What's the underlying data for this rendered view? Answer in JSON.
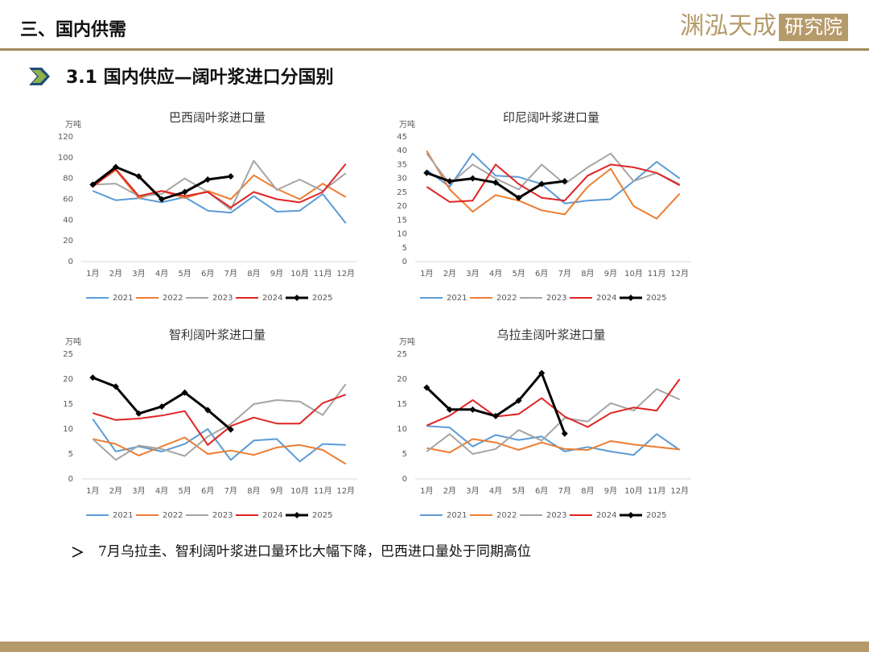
{
  "header": {
    "title": "三、国内供需",
    "logo_main": "渊泓天成",
    "logo_box": "研究院"
  },
  "section": {
    "title": "3.1 国内供应—阔叶浆进口分国别"
  },
  "bullet": {
    "text": "7月乌拉圭、智利阔叶浆进口量环比大幅下降，巴西进口量处于同期高位"
  },
  "chart_data": [
    {
      "type": "line",
      "title": "巴西阔叶浆进口量",
      "y_label": "万吨",
      "categories": [
        "1月",
        "2月",
        "3月",
        "4月",
        "5月",
        "6月",
        "7月",
        "8月",
        "9月",
        "10月",
        "11月",
        "12月"
      ],
      "ylim": [
        0,
        120
      ],
      "yticks": [
        0,
        20,
        40,
        60,
        80,
        100,
        120
      ],
      "series": [
        {
          "name": "2021",
          "color": "#5b9bd5",
          "values": [
            68,
            59,
            61,
            57,
            62,
            49,
            47,
            63,
            48,
            49,
            65,
            37
          ]
        },
        {
          "name": "2022",
          "color": "#ed7d31",
          "values": [
            73,
            88,
            61,
            68,
            61,
            68,
            60,
            83,
            70,
            60,
            75,
            62
          ]
        },
        {
          "name": "2023",
          "color": "#a5a5a5",
          "values": [
            74,
            75,
            63,
            65,
            80,
            67,
            50,
            97,
            69,
            79,
            68,
            85
          ]
        },
        {
          "name": "2024",
          "color": "#e02424",
          "values": [
            72,
            89,
            63,
            68,
            63,
            67,
            52,
            67,
            60,
            57,
            67,
            94
          ]
        },
        {
          "name": "2025",
          "color": "#000000",
          "values": [
            74,
            91,
            82,
            60,
            67,
            79,
            82,
            null,
            null,
            null,
            null,
            null
          ]
        }
      ]
    },
    {
      "type": "line",
      "title": "印尼阔叶浆进口量",
      "y_label": "万吨",
      "categories": [
        "1月",
        "2月",
        "3月",
        "4月",
        "5月",
        "6月",
        "7月",
        "8月",
        "9月",
        "10月",
        "11月",
        "12月"
      ],
      "ylim": [
        0,
        45
      ],
      "yticks": [
        0,
        5,
        10,
        15,
        20,
        25,
        30,
        35,
        40,
        45
      ],
      "series": [
        {
          "name": "2021",
          "color": "#5b9bd5",
          "values": [
            33,
            27,
            39,
            31,
            30.5,
            28,
            21,
            22,
            22.5,
            29,
            36,
            30
          ]
        },
        {
          "name": "2022",
          "color": "#ed7d31",
          "values": [
            40,
            26,
            18,
            24,
            22,
            18.5,
            17,
            27,
            33.5,
            20,
            15.5,
            24.5
          ]
        },
        {
          "name": "2023",
          "color": "#a5a5a5",
          "values": [
            39,
            28,
            35,
            30,
            26,
            35,
            28,
            34,
            39,
            29,
            32,
            28
          ]
        },
        {
          "name": "2024",
          "color": "#e02424",
          "values": [
            27,
            21.5,
            22,
            35,
            28,
            23,
            22,
            31,
            35,
            34,
            32,
            27.5
          ]
        },
        {
          "name": "2025",
          "color": "#000000",
          "values": [
            32,
            29,
            30,
            28.5,
            23,
            28,
            29,
            null,
            null,
            null,
            null,
            null
          ]
        }
      ]
    },
    {
      "type": "line",
      "title": "智利阔叶浆进口量",
      "y_label": "万吨",
      "categories": [
        "1月",
        "2月",
        "3月",
        "4月",
        "5月",
        "6月",
        "7月",
        "8月",
        "9月",
        "10月",
        "11月",
        "12月"
      ],
      "ylim": [
        0,
        25
      ],
      "yticks": [
        0,
        5,
        10,
        15,
        20,
        25
      ],
      "series": [
        {
          "name": "2021",
          "color": "#5b9bd5",
          "values": [
            12,
            5.5,
            6.5,
            5.5,
            7,
            10,
            3.8,
            7.7,
            8,
            3.5,
            7,
            6.8
          ]
        },
        {
          "name": "2022",
          "color": "#ed7d31",
          "values": [
            8,
            7,
            4.7,
            6.5,
            8.3,
            5,
            5.7,
            4.8,
            6.3,
            6.8,
            5.8,
            3
          ]
        },
        {
          "name": "2023",
          "color": "#a5a5a5",
          "values": [
            8,
            3.8,
            6.7,
            6,
            4.6,
            8.5,
            11,
            15,
            15.8,
            15.5,
            12.8,
            19
          ]
        },
        {
          "name": "2024",
          "color": "#e02424",
          "values": [
            13.2,
            11.8,
            12.1,
            12.7,
            13.6,
            6.8,
            10.6,
            12.3,
            11.1,
            11.1,
            15.2,
            16.9
          ]
        },
        {
          "name": "2025",
          "color": "#000000",
          "values": [
            20.3,
            18.5,
            13.1,
            14.5,
            17.3,
            13.8,
            9.9,
            null,
            null,
            null,
            null,
            null
          ]
        }
      ]
    },
    {
      "type": "line",
      "title": "乌拉圭阔叶浆进口量",
      "y_label": "万吨",
      "categories": [
        "1月",
        "2月",
        "3月",
        "4月",
        "5月",
        "6月",
        "7月",
        "8月",
        "9月",
        "10月",
        "11月",
        "12月"
      ],
      "ylim": [
        0,
        25
      ],
      "yticks": [
        0,
        5,
        10,
        15,
        20,
        25
      ],
      "series": [
        {
          "name": "2021",
          "color": "#5b9bd5",
          "values": [
            10.6,
            10.3,
            6.5,
            8.8,
            7.8,
            8.5,
            5.5,
            6.4,
            5.5,
            4.8,
            9,
            5.8
          ]
        },
        {
          "name": "2022",
          "color": "#ed7d31",
          "values": [
            6.2,
            5.3,
            8,
            7.3,
            5.8,
            7.3,
            6,
            5.8,
            7.6,
            6.9,
            6.4,
            5.9
          ]
        },
        {
          "name": "2023",
          "color": "#a5a5a5",
          "values": [
            5.5,
            9,
            5,
            6,
            9.8,
            7.7,
            12.2,
            11.5,
            15.2,
            13.7,
            18,
            15.9
          ]
        },
        {
          "name": "2024",
          "color": "#e02424",
          "values": [
            10.7,
            12.7,
            15.8,
            12.5,
            13,
            16.2,
            12.5,
            10.4,
            13.2,
            14.3,
            13.7,
            20
          ]
        },
        {
          "name": "2025",
          "color": "#000000",
          "values": [
            18.3,
            13.9,
            13.9,
            12.6,
            15.7,
            21.2,
            9.1,
            null,
            null,
            null,
            null,
            null
          ]
        }
      ]
    }
  ]
}
